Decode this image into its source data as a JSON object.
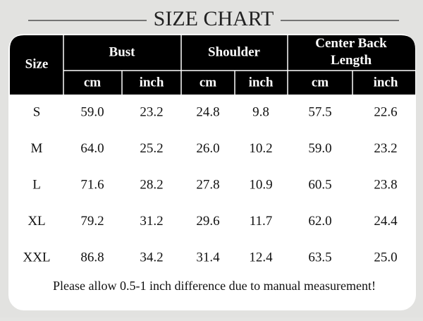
{
  "title": "SIZE CHART",
  "table": {
    "size_header": "Size",
    "groups": [
      {
        "label": "Bust",
        "units": [
          "cm",
          "inch"
        ]
      },
      {
        "label": "Shoulder",
        "units": [
          "cm",
          "inch"
        ]
      },
      {
        "label": "Center Back Length",
        "units": [
          "cm",
          "inch"
        ]
      }
    ],
    "rows": [
      [
        "S",
        "59.0",
        "23.2",
        "24.8",
        "9.8",
        "57.5",
        "22.6"
      ],
      [
        "M",
        "64.0",
        "25.2",
        "26.0",
        "10.2",
        "59.0",
        "23.2"
      ],
      [
        "L",
        "71.6",
        "28.2",
        "27.8",
        "10.9",
        "60.5",
        "23.8"
      ],
      [
        "XL",
        "79.2",
        "31.2",
        "29.6",
        "11.7",
        "62.0",
        "24.4"
      ],
      [
        "XXL",
        "86.8",
        "34.2",
        "31.4",
        "12.4",
        "63.5",
        "25.0"
      ]
    ]
  },
  "note": "Please allow 0.5-1 inch difference due to manual measurement!"
}
